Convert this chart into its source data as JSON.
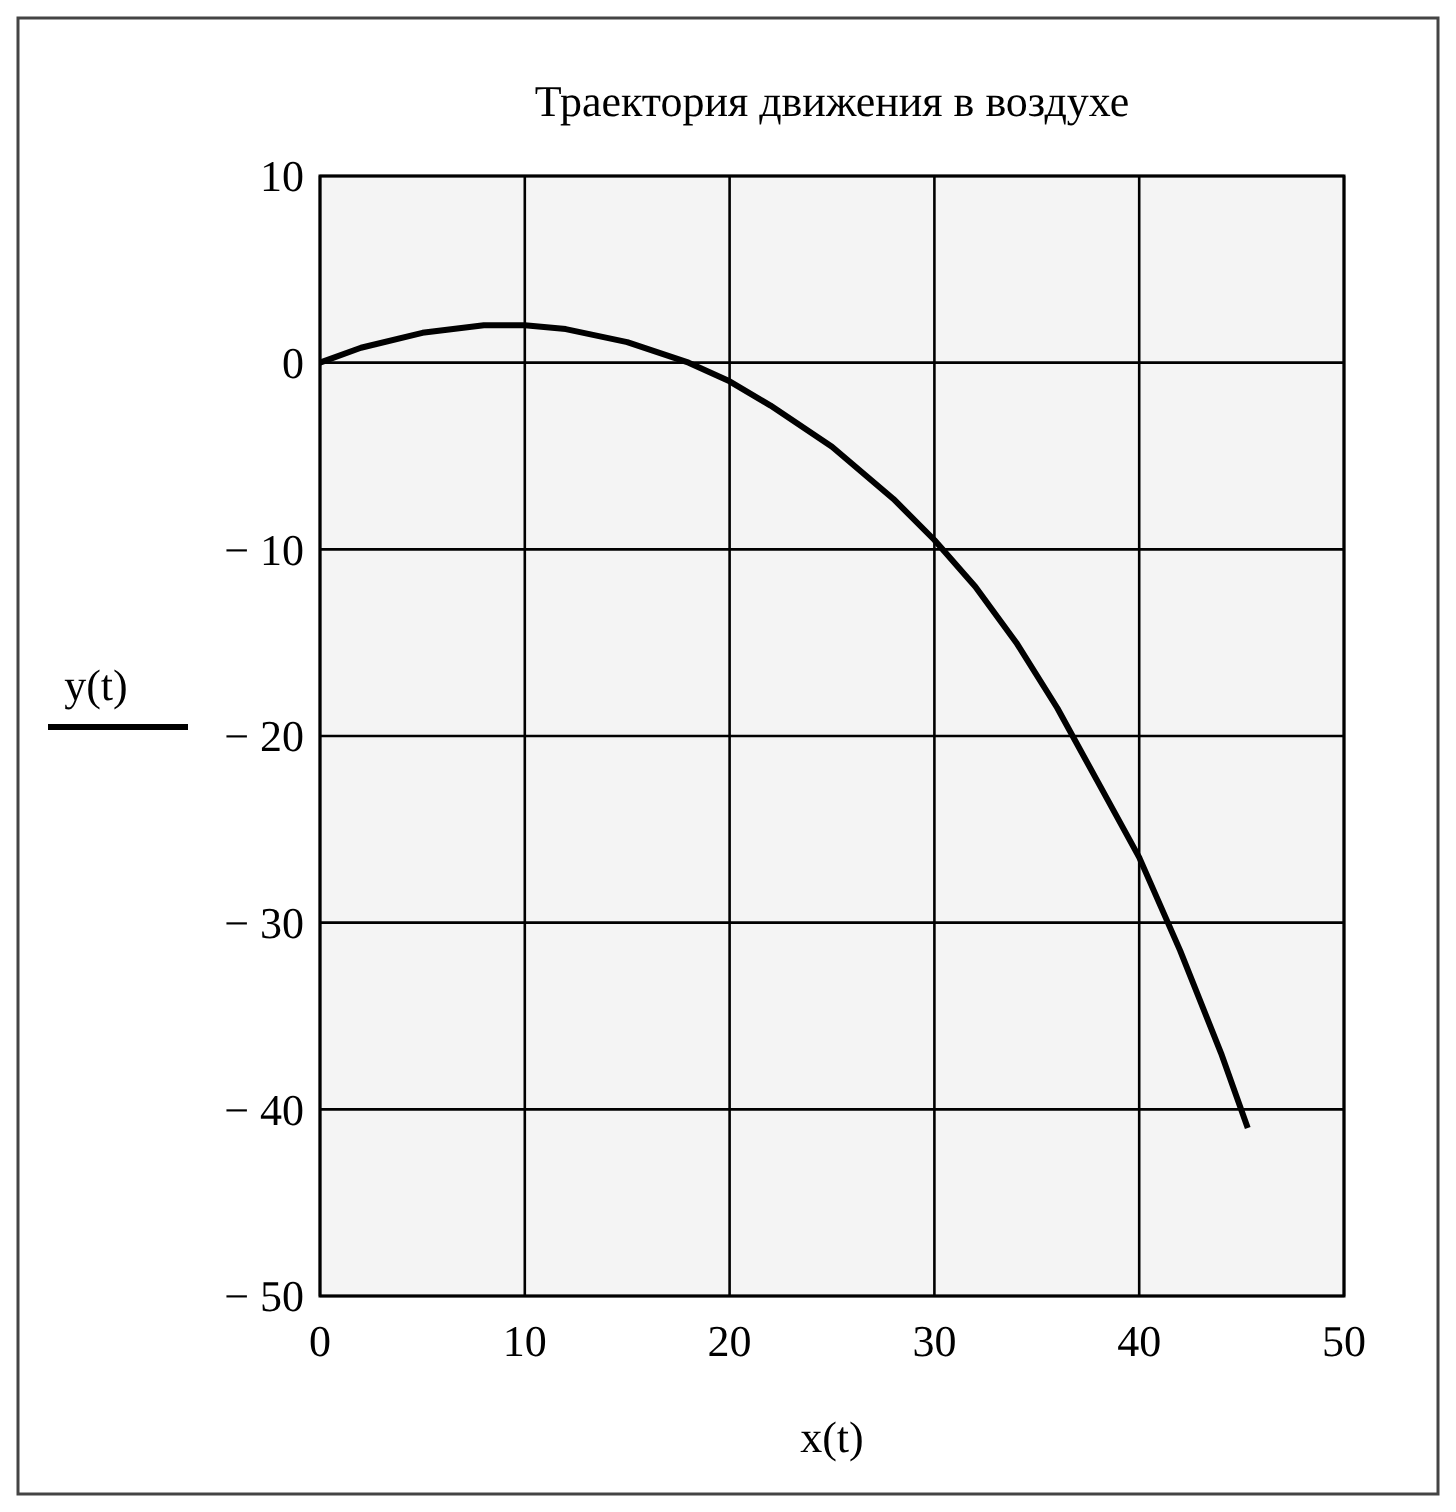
{
  "chart_data": {
    "type": "line",
    "title": "Траектория движения в воздухе",
    "xlabel": "x(t)",
    "ylabel": "y(t)",
    "x": [
      0,
      2,
      5,
      8,
      10,
      12,
      15,
      18,
      20,
      22,
      25,
      28,
      30,
      32,
      34,
      36,
      38,
      40,
      42,
      44,
      45.3
    ],
    "series": [
      {
        "color": "#000000",
        "values": [
          0,
          0.8,
          1.6,
          2,
          2,
          1.8,
          1.1,
          0,
          -1,
          -2.3,
          -4.5,
          -7.3,
          -9.5,
          -12,
          -15,
          -18.5,
          -22.5,
          -26.5,
          -31.5,
          -37,
          -41
        ]
      }
    ],
    "xlim": [
      0,
      50
    ],
    "xticks": [
      0,
      10,
      20,
      30,
      40,
      50
    ],
    "ylim": [
      -50,
      10
    ],
    "yticks": [
      -50,
      -40,
      -30,
      -20,
      -10,
      0,
      10
    ],
    "grid": true,
    "marker": "none",
    "line_style": "solid"
  }
}
